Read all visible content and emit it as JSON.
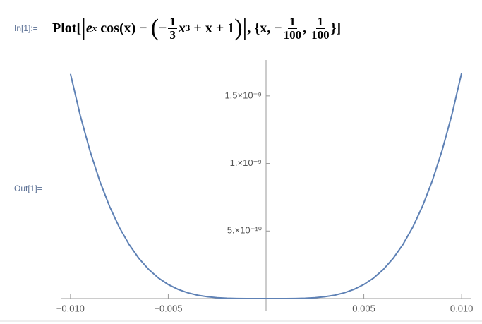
{
  "input_label": "In[1]:=",
  "output_label": "Out[1]=",
  "input": {
    "parts": [
      "Plot[",
      "|",
      "e",
      "x",
      " cos(x) − ",
      "(",
      "−",
      "1",
      "3",
      "x",
      "3",
      " + x + 1",
      ")",
      "|",
      ", {",
      "x, −",
      "1",
      "100",
      ", ",
      "1",
      "100",
      "}",
      "]"
    ]
  },
  "chart_data": {
    "type": "line",
    "color": "#5e81b5",
    "x": [
      -0.01,
      -0.0095,
      -0.009,
      -0.0085,
      -0.008,
      -0.0075,
      -0.007,
      -0.0065,
      -0.006,
      -0.0055,
      -0.005,
      -0.0045,
      -0.004,
      -0.0035,
      -0.003,
      -0.0025,
      -0.002,
      -0.0015,
      -0.001,
      -0.0005,
      0,
      0.0005,
      0.001,
      0.0015,
      0.002,
      0.0025,
      0.003,
      0.0035,
      0.004,
      0.0045,
      0.005,
      0.0055,
      0.006,
      0.0065,
      0.007,
      0.0075,
      0.008,
      0.0085,
      0.009,
      0.0095,
      0.01
    ],
    "values": [
      1.663e-09,
      1.3549e-09,
      1.0915e-09,
      8.685e-10,
      6.816e-10,
      5.266e-10,
      3.996e-10,
      2.971e-10,
      2.158e-10,
      1.523e-10,
      1.041e-10,
      6.82e-11,
      4.26e-11,
      2.5e-11,
      1.35e-11,
      6.5e-12,
      2.66e-12,
      8.43e-13,
      1.67e-13,
      1.04e-14,
      0,
      1.04e-14,
      1.67e-13,
      8.44e-13,
      2.67e-12,
      6.52e-12,
      1.35e-11,
      2.5e-11,
      4.27e-11,
      6.84e-11,
      1.043e-10,
      1.527e-10,
      2.162e-10,
      2.979e-10,
      4.008e-10,
      5.282e-10,
      6.838e-10,
      8.715e-10,
      1.0955e-09,
      1.3601e-09,
      1.67e-09
    ],
    "xlim": [
      -0.0105,
      0.0105
    ],
    "ylim": [
      0,
      1.75e-09
    ],
    "xticks": [
      {
        "value": -0.01,
        "label": "−0.010"
      },
      {
        "value": -0.005,
        "label": "−0.005"
      },
      {
        "value": 0.005,
        "label": "0.005"
      },
      {
        "value": 0.01,
        "label": "0.010"
      }
    ],
    "yticks": [
      {
        "value": 5e-10,
        "label": "5.×10⁻¹⁰"
      },
      {
        "value": 1e-09,
        "label": "1.×10⁻⁹"
      },
      {
        "value": 1.5e-09,
        "label": "1.5×10⁻⁹"
      }
    ]
  }
}
